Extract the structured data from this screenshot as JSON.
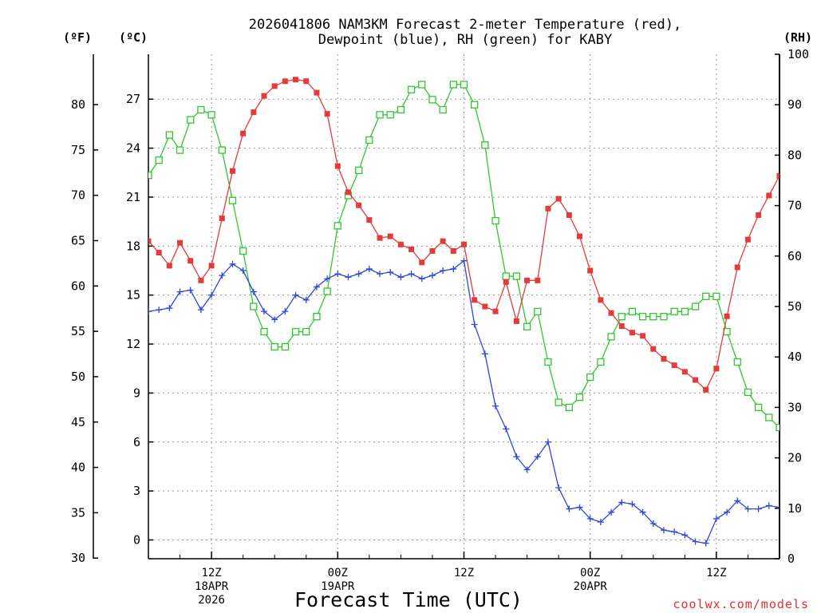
{
  "chart_data": {
    "type": "line",
    "title_line1": "2026041806 NAM3KM Forecast 2-meter Temperature (red),",
    "title_line2": "Dewpoint (blue), RH (green) for KABY",
    "unit_labels": {
      "fahrenheit": "(ºF)",
      "celsius": "(ºC)",
      "rh": "(RH)"
    },
    "xlabel": "Forecast Time (UTC)",
    "credit": "coolwx.com/models",
    "x_range_hours": [
      0,
      60
    ],
    "x_ticks": [
      {
        "hour": 6,
        "lines": [
          "12Z",
          "18APR",
          "2026"
        ]
      },
      {
        "hour": 18,
        "lines": [
          "00Z",
          "19APR"
        ]
      },
      {
        "hour": 30,
        "lines": [
          "12Z"
        ]
      },
      {
        "hour": 42,
        "lines": [
          "00Z",
          "20APR"
        ]
      },
      {
        "hour": 54,
        "lines": [
          "12Z"
        ]
      }
    ],
    "yaxis_celsius": {
      "range": [
        -1.15,
        29.75
      ],
      "ticks": [
        "0",
        "3",
        "6",
        "9",
        "12",
        "15",
        "18",
        "21",
        "24",
        "27"
      ]
    },
    "yaxis_fahrenheit": {
      "ticks": [
        "30",
        "35",
        "40",
        "45",
        "50",
        "55",
        "60",
        "65",
        "70",
        "75",
        "80"
      ]
    },
    "yaxis_rh": {
      "range": [
        0,
        100
      ],
      "ticks": [
        "0",
        "10",
        "20",
        "30",
        "40",
        "50",
        "60",
        "70",
        "80",
        "90",
        "100"
      ]
    },
    "grid": true,
    "series": [
      {
        "name": "2-meter Temperature",
        "units": "C",
        "color": "#e43a3a",
        "marker": "filled-square",
        "values": [
          18.3,
          17.6,
          16.8,
          18.2,
          17.1,
          15.9,
          16.8,
          19.7,
          22.6,
          24.9,
          26.2,
          27.2,
          27.8,
          28.1,
          28.2,
          28.1,
          27.4,
          26.1,
          22.9,
          21.3,
          20.5,
          19.6,
          18.5,
          18.6,
          18.1,
          17.8,
          17.0,
          17.7,
          18.3,
          17.7,
          18.1,
          14.7,
          14.3,
          14.0,
          15.8,
          13.4,
          15.9,
          15.9,
          20.3,
          20.9,
          19.9,
          18.6,
          16.5,
          14.7,
          13.9,
          13.1,
          12.7,
          12.5,
          11.7,
          11.1,
          10.7,
          10.3,
          9.8,
          9.2,
          10.5,
          13.7,
          16.7,
          18.4,
          19.9,
          21.1,
          22.3
        ]
      },
      {
        "name": "Dewpoint",
        "units": "C",
        "color": "#2d47da",
        "marker": "plus",
        "values": [
          14.0,
          14.1,
          14.2,
          15.2,
          15.3,
          14.1,
          15.0,
          16.2,
          16.9,
          16.5,
          15.2,
          14.0,
          13.5,
          14.0,
          15.0,
          14.7,
          15.5,
          16.0,
          16.3,
          16.1,
          16.3,
          16.6,
          16.3,
          16.4,
          16.1,
          16.3,
          16.0,
          16.2,
          16.5,
          16.6,
          17.1,
          13.2,
          11.4,
          8.2,
          6.8,
          5.1,
          4.3,
          5.1,
          6.0,
          3.2,
          1.9,
          2.0,
          1.3,
          1.1,
          1.7,
          2.3,
          2.2,
          1.7,
          1.0,
          0.6,
          0.5,
          0.3,
          -0.1,
          -0.2,
          1.3,
          1.7,
          2.4,
          1.9,
          1.9,
          2.1,
          2.0
        ]
      },
      {
        "name": "RH",
        "units": "%",
        "color": "#2ec82e",
        "marker": "open-square",
        "values": [
          76,
          79,
          84,
          81,
          87,
          89,
          88,
          81,
          71,
          61,
          50,
          45,
          42,
          42,
          45,
          45,
          48,
          53,
          66,
          72,
          77,
          83,
          88,
          88,
          89,
          93,
          94,
          91,
          89,
          94,
          94,
          90,
          82,
          67,
          56,
          56,
          46,
          49,
          39,
          31,
          30,
          32,
          36,
          39,
          44,
          48,
          49,
          48,
          48,
          48,
          49,
          49,
          50,
          52,
          52,
          45,
          39,
          33,
          30,
          28,
          26
        ]
      }
    ]
  }
}
